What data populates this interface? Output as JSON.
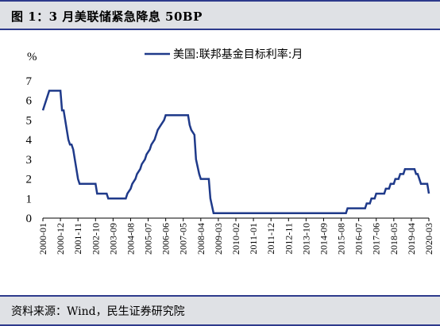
{
  "title": "图 1：3 月美联储紧急降息 50BP",
  "source": "资料来源：Wind，民生证券研究院",
  "chart_data": {
    "type": "line",
    "ylabel": "%",
    "ylim": [
      0,
      7
    ],
    "yticks": [
      "0",
      "1",
      "2",
      "3",
      "4",
      "5",
      "6",
      "7"
    ],
    "xlim": [
      "2000-01",
      "2020-03"
    ],
    "xtick_labels": [
      "2000-01",
      "2000-12",
      "2001-11",
      "2002-10",
      "2003-09",
      "2004-08",
      "2005-07",
      "2006-06",
      "2007-05",
      "2008-04",
      "2009-03",
      "2010-02",
      "2011-01",
      "2011-12",
      "2012-11",
      "2013-10",
      "2014-09",
      "2015-08",
      "2016-07",
      "2017-06",
      "2018-05",
      "2019-04",
      "2020-03"
    ],
    "legend_position": "top",
    "series": [
      {
        "name": "美国:联邦基金目标利率:月",
        "color": "#1f3a8a",
        "points": [
          [
            "2000-01",
            5.5
          ],
          [
            "2000-02",
            5.75
          ],
          [
            "2000-03",
            6.0
          ],
          [
            "2000-05",
            6.5
          ],
          [
            "2000-12",
            6.5
          ],
          [
            "2001-01",
            5.5
          ],
          [
            "2001-02",
            5.5
          ],
          [
            "2001-03",
            5.0
          ],
          [
            "2001-04",
            4.5
          ],
          [
            "2001-05",
            4.0
          ],
          [
            "2001-06",
            3.75
          ],
          [
            "2001-07",
            3.75
          ],
          [
            "2001-08",
            3.5
          ],
          [
            "2001-09",
            3.0
          ],
          [
            "2001-10",
            2.5
          ],
          [
            "2001-11",
            2.0
          ],
          [
            "2001-12",
            1.75
          ],
          [
            "2002-10",
            1.75
          ],
          [
            "2002-11",
            1.25
          ],
          [
            "2003-05",
            1.25
          ],
          [
            "2003-06",
            1.0
          ],
          [
            "2004-05",
            1.0
          ],
          [
            "2004-06",
            1.25
          ],
          [
            "2004-08",
            1.5
          ],
          [
            "2004-09",
            1.75
          ],
          [
            "2004-11",
            2.0
          ],
          [
            "2004-12",
            2.25
          ],
          [
            "2005-02",
            2.5
          ],
          [
            "2005-03",
            2.75
          ],
          [
            "2005-05",
            3.0
          ],
          [
            "2005-06",
            3.25
          ],
          [
            "2005-08",
            3.5
          ],
          [
            "2005-09",
            3.75
          ],
          [
            "2005-11",
            4.0
          ],
          [
            "2005-12",
            4.25
          ],
          [
            "2006-01",
            4.5
          ],
          [
            "2006-03",
            4.75
          ],
          [
            "2006-05",
            5.0
          ],
          [
            "2006-06",
            5.25
          ],
          [
            "2007-08",
            5.25
          ],
          [
            "2007-09",
            4.75
          ],
          [
            "2007-10",
            4.5
          ],
          [
            "2007-12",
            4.25
          ],
          [
            "2008-01",
            3.0
          ],
          [
            "2008-03",
            2.25
          ],
          [
            "2008-04",
            2.0
          ],
          [
            "2008-09",
            2.0
          ],
          [
            "2008-10",
            1.0
          ],
          [
            "2008-12",
            0.25
          ],
          [
            "2015-11",
            0.25
          ],
          [
            "2015-12",
            0.5
          ],
          [
            "2016-11",
            0.5
          ],
          [
            "2016-12",
            0.75
          ],
          [
            "2017-02",
            0.75
          ],
          [
            "2017-03",
            1.0
          ],
          [
            "2017-05",
            1.0
          ],
          [
            "2017-06",
            1.25
          ],
          [
            "2017-11",
            1.25
          ],
          [
            "2017-12",
            1.5
          ],
          [
            "2018-02",
            1.5
          ],
          [
            "2018-03",
            1.75
          ],
          [
            "2018-05",
            1.75
          ],
          [
            "2018-06",
            2.0
          ],
          [
            "2018-08",
            2.0
          ],
          [
            "2018-09",
            2.25
          ],
          [
            "2018-11",
            2.25
          ],
          [
            "2018-12",
            2.5
          ],
          [
            "2019-06",
            2.5
          ],
          [
            "2019-07",
            2.25
          ],
          [
            "2019-08",
            2.25
          ],
          [
            "2019-09",
            2.0
          ],
          [
            "2019-10",
            1.75
          ],
          [
            "2020-02",
            1.75
          ],
          [
            "2020-03",
            1.25
          ]
        ]
      }
    ]
  }
}
